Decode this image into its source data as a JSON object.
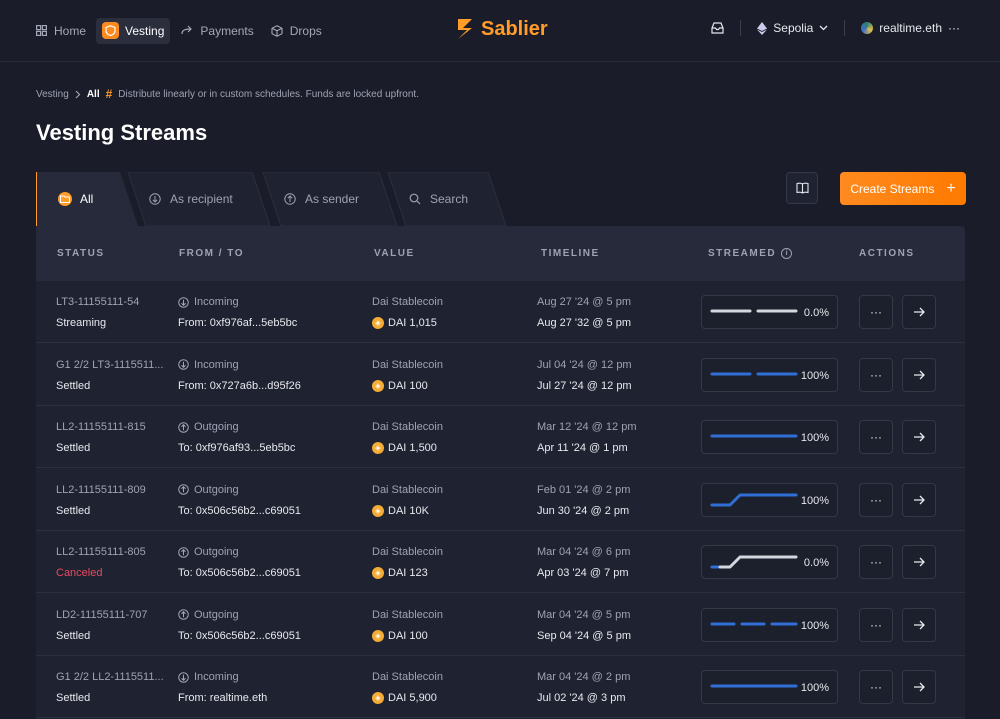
{
  "nav": {
    "items": [
      {
        "label": "Home",
        "icon": "grid-icon"
      },
      {
        "label": "Vesting",
        "icon": "shield-icon",
        "active": true
      },
      {
        "label": "Payments",
        "icon": "arrow-icon"
      },
      {
        "label": "Drops",
        "icon": "box-icon"
      }
    ]
  },
  "brand": {
    "name": "Sablier",
    "color": "#ff9c2a"
  },
  "header": {
    "network": "Sepolia",
    "account": "realtime.eth",
    "more": "···"
  },
  "breadcrumb": {
    "root": "Vesting",
    "current": "All",
    "hash": "#",
    "description": "Distribute linearly or in custom schedules. Funds are locked upfront."
  },
  "page": {
    "title": "Vesting Streams"
  },
  "tabs": [
    {
      "label": "All",
      "active": true
    },
    {
      "label": "As recipient"
    },
    {
      "label": "As sender"
    },
    {
      "label": "Search"
    }
  ],
  "create_button": {
    "label": "Create Streams",
    "icon": "+"
  },
  "table": {
    "headers": {
      "status": "STATUS",
      "from_to": "FROM / TO",
      "value": "VALUE",
      "timeline": "TIMELINE",
      "streamed": "STREAMED",
      "actions": "ACTIONS"
    },
    "rows": [
      {
        "id": "LT3-11155111-54",
        "status": "Streaming",
        "direction": "Incoming",
        "party": "From: 0xf976af...5eb5bc",
        "token": "Dai Stablecoin",
        "amount": "DAI 1,015",
        "start": "Aug 27 '24 @ 5 pm",
        "end": "Aug 27 '32 @ 5 pm",
        "streamed": "0.0%",
        "progress": 0.0
      },
      {
        "id": "G1 2/2 LT3-1115511...",
        "status": "Settled",
        "direction": "Incoming",
        "party": "From: 0x727a6b...d95f26",
        "token": "Dai Stablecoin",
        "amount": "DAI 100",
        "start": "Jul 04 '24 @ 12 pm",
        "end": "Jul 27 '24 @ 12 pm",
        "streamed": "100%",
        "progress": 1.0
      },
      {
        "id": "LL2-11155111-815",
        "status": "Settled",
        "direction": "Outgoing",
        "party": "To: 0xf976af93...5eb5bc",
        "token": "Dai Stablecoin",
        "amount": "DAI 1,500",
        "start": "Mar 12 '24 @ 12 pm",
        "end": "Apr 11 '24 @ 1 pm",
        "streamed": "100%",
        "progress": 1.0
      },
      {
        "id": "LL2-11155111-809",
        "status": "Settled",
        "direction": "Outgoing",
        "party": "To: 0x506c56b2...c69051",
        "token": "Dai Stablecoin",
        "amount": "DAI 10K",
        "start": "Feb 01 '24 @ 2 pm",
        "end": "Jun 30 '24 @ 2 pm",
        "streamed": "100%",
        "progress": 1.0
      },
      {
        "id": "LL2-11155111-805",
        "status": "Canceled",
        "direction": "Outgoing",
        "party": "To: 0x506c56b2...c69051",
        "token": "Dai Stablecoin",
        "amount": "DAI 123",
        "start": "Mar 04 '24 @ 6 pm",
        "end": "Apr 03 '24 @ 7 pm",
        "streamed": "0.0%",
        "progress": 0.0
      },
      {
        "id": "LD2-11155111-707",
        "status": "Settled",
        "direction": "Outgoing",
        "party": "To: 0x506c56b2...c69051",
        "token": "Dai Stablecoin",
        "amount": "DAI 100",
        "start": "Mar 04 '24 @ 5 pm",
        "end": "Sep 04 '24 @ 5 pm",
        "streamed": "100%",
        "progress": 1.0
      },
      {
        "id": "G1 2/2 LL2-1115511...",
        "status": "Settled",
        "direction": "Incoming",
        "party": "From: realtime.eth",
        "token": "Dai Stablecoin",
        "amount": "DAI 5,900",
        "start": "Mar 04 '24 @ 2 pm",
        "end": "Jul 02 '24 @ 3 pm",
        "streamed": "100%",
        "progress": 1.0
      }
    ]
  },
  "colors": {
    "accent": "#ff8a1f",
    "stream_blue": "#2f6fd6",
    "stream_gray": "#d5d7de",
    "canceled": "#e84a5f"
  }
}
